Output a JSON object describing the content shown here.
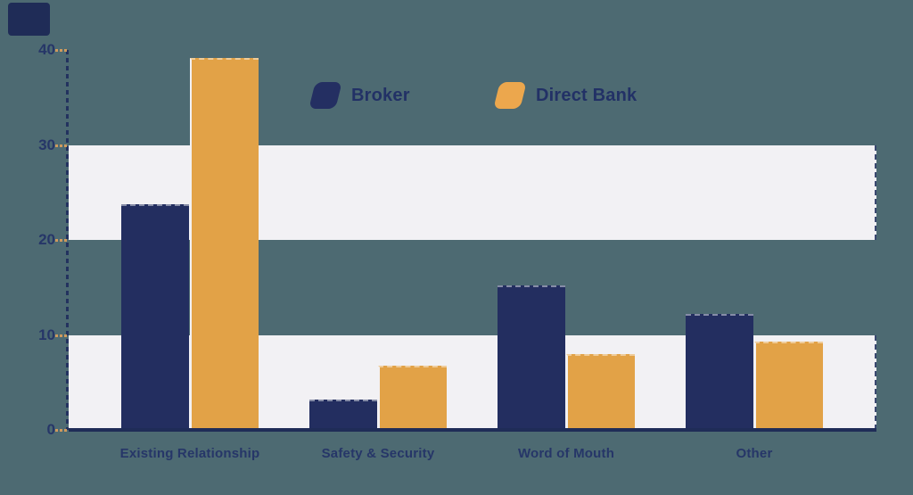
{
  "canvas": {
    "background_color": "#4d6a72"
  },
  "brand": {
    "logo_square_color": "#1f2c57"
  },
  "legend": {
    "items": [
      {
        "label": "Broker",
        "color": "#242f62"
      },
      {
        "label": "Direct Bank",
        "color": "#eca74d"
      }
    ]
  },
  "chart_data": {
    "type": "bar",
    "title": "",
    "xlabel": "",
    "ylabel": "",
    "categories": [
      "Existing Relationship",
      "Safety & Security",
      "Word of Mouth",
      "Other"
    ],
    "series": [
      {
        "name": "Broker",
        "color": "#232e60",
        "values": [
          23.8,
          3.2,
          15.2,
          12.2
        ]
      },
      {
        "name": "Direct Bank",
        "color": "#e2a247",
        "values": [
          39.2,
          6.8,
          8.0,
          9.3
        ]
      }
    ],
    "ylim": [
      0,
      40
    ],
    "yticks": [
      0,
      10,
      20,
      30,
      40
    ],
    "ytick_labels": [
      "0",
      "10",
      "20",
      "30",
      "40"
    ],
    "grid": "alternating white horizontal bands for value ranges 0-10 and 20-30",
    "bands": [
      {
        "from": 0,
        "to": 10
      },
      {
        "from": 20,
        "to": 30
      }
    ],
    "legend_position": "top-center",
    "axis_style": {
      "y_axis": "dashed navy vertical line",
      "x_axis": "solid navy baseline",
      "tick_color": "#cf9a5e"
    }
  }
}
